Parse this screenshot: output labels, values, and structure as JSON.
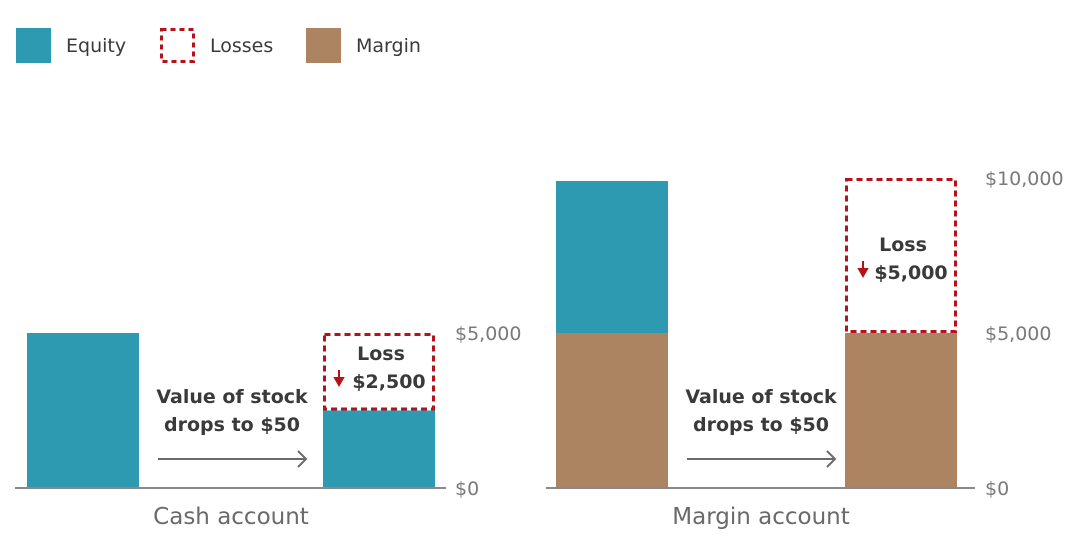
{
  "colors": {
    "equity": "#2d9ab2",
    "margin": "#ad8462",
    "losses": "#b5121b",
    "axis": "#8a8a8a",
    "arrow": "#6a6a6a"
  },
  "legend": [
    {
      "label": "Equity",
      "style": "fill",
      "color_key": "equity"
    },
    {
      "label": "Losses",
      "style": "dashed-outline",
      "color_key": "losses"
    },
    {
      "label": "Margin",
      "style": "fill",
      "color_key": "margin"
    }
  ],
  "chart_data": [
    {
      "type": "bar",
      "stacked": true,
      "title": "Cash account",
      "ylim": [
        0,
        5000
      ],
      "yticks": [
        "$0",
        "$5,000"
      ],
      "ytick_values": [
        0,
        5000
      ],
      "transition_label": [
        "Value of stock",
        "drops to $50"
      ],
      "bars": [
        {
          "segments": [
            {
              "series": "Equity",
              "value": 5000
            }
          ]
        },
        {
          "segments": [
            {
              "series": "Equity",
              "value": 2500
            },
            {
              "series": "Losses",
              "value": 2500,
              "label": [
                "Loss",
                "$2,500"
              ]
            }
          ]
        }
      ]
    },
    {
      "type": "bar",
      "stacked": true,
      "title": "Margin account",
      "ylim": [
        0,
        10000
      ],
      "yticks": [
        "$0",
        "$5,000",
        "$10,000"
      ],
      "ytick_values": [
        0,
        5000,
        10000
      ],
      "transition_label": [
        "Value of stock",
        "drops to $50"
      ],
      "bars": [
        {
          "segments": [
            {
              "series": "Margin",
              "value": 5000
            },
            {
              "series": "Equity",
              "value": 5000
            }
          ]
        },
        {
          "segments": [
            {
              "series": "Margin",
              "value": 5000
            },
            {
              "series": "Losses",
              "value": 5000,
              "label": [
                "Loss",
                "$5,000"
              ]
            }
          ]
        }
      ]
    }
  ]
}
